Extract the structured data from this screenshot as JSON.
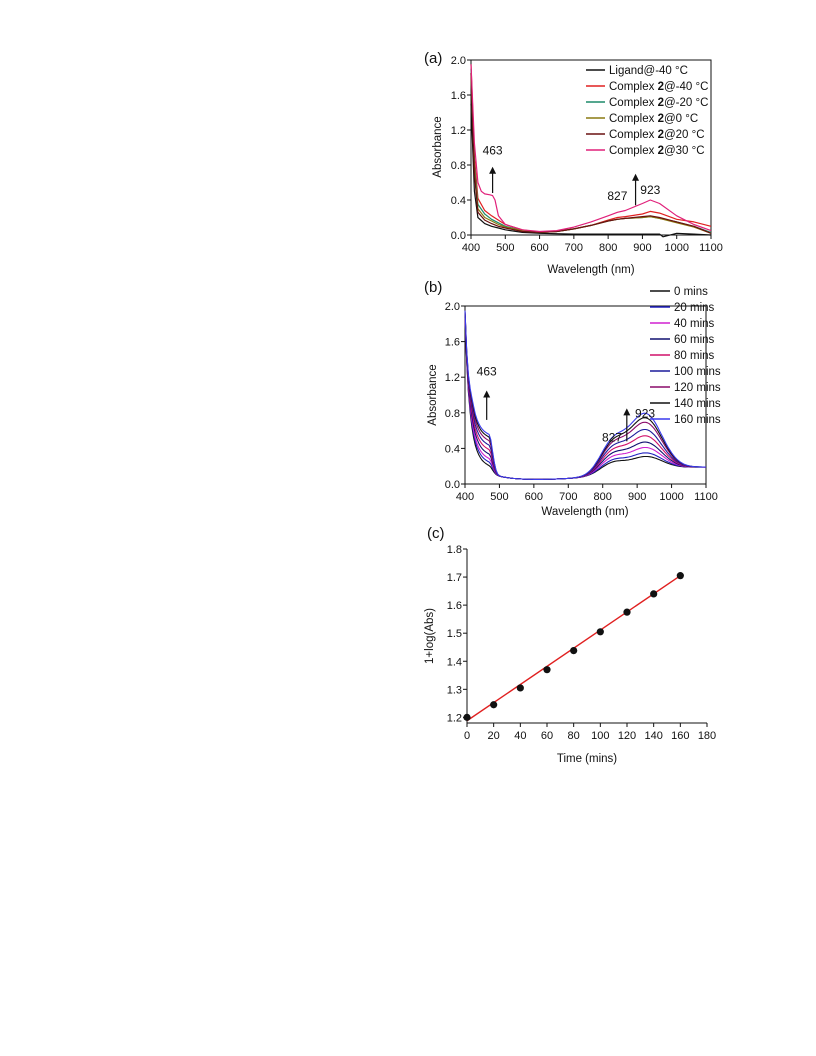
{
  "chart_data": [
    {
      "panel_label": "(a)",
      "type": "line",
      "xlabel": "Wavelength (nm)",
      "ylabel": "Absorbance",
      "xlim": [
        400,
        1100
      ],
      "ylim": [
        0.0,
        2.0
      ],
      "xticks": [
        "400",
        "500",
        "600",
        "700",
        "800",
        "900",
        "1000",
        "1100"
      ],
      "yticks": [
        "0.0",
        "0.4",
        "0.8",
        "1.2",
        "1.6",
        "2.0"
      ],
      "legend_position": "top-right",
      "annotations": [
        {
          "text": "463",
          "x": 463,
          "y": 0.92
        },
        {
          "text": "827",
          "x": 827,
          "y": 0.4
        },
        {
          "text": "923",
          "x": 923,
          "y": 0.47
        }
      ],
      "arrows": [
        {
          "x": 463,
          "y_from": 0.48,
          "y_to": 0.78
        },
        {
          "x": 880,
          "y_from": 0.34,
          "y_to": 0.7
        }
      ],
      "series": [
        {
          "legend_prefix": "Ligand@-40 °C",
          "legend_bold": "",
          "legend_suffix": "",
          "color": "#111111",
          "x": [
            400,
            410,
            420,
            440,
            460,
            480,
            500,
            550,
            600,
            700,
            800,
            900,
            950,
            960,
            1000,
            1050,
            1100
          ],
          "y": [
            1.5,
            0.5,
            0.2,
            0.13,
            0.1,
            0.08,
            0.06,
            0.03,
            0.02,
            0.01,
            0.01,
            0.01,
            0.01,
            -0.02,
            0.02,
            0.01,
            0.0
          ]
        },
        {
          "legend_prefix": "Complex ",
          "legend_bold": "2",
          "legend_suffix": "@-40 °C",
          "color": "#e02020",
          "x": [
            400,
            410,
            420,
            440,
            460,
            480,
            500,
            550,
            600,
            650,
            700,
            750,
            800,
            827,
            850,
            900,
            923,
            950,
            1000,
            1050,
            1100
          ],
          "y": [
            1.95,
            0.9,
            0.42,
            0.28,
            0.22,
            0.17,
            0.12,
            0.06,
            0.03,
            0.04,
            0.07,
            0.11,
            0.17,
            0.2,
            0.21,
            0.24,
            0.27,
            0.25,
            0.18,
            0.15,
            0.1
          ]
        },
        {
          "legend_prefix": "Complex ",
          "legend_bold": "2",
          "legend_suffix": "@-20 °C",
          "color": "#1d8a6a",
          "x": [
            400,
            410,
            420,
            440,
            460,
            480,
            500,
            550,
            600,
            650,
            700,
            750,
            800,
            827,
            850,
            900,
            923,
            950,
            1000,
            1050,
            1100
          ],
          "y": [
            1.9,
            0.8,
            0.35,
            0.24,
            0.18,
            0.14,
            0.1,
            0.05,
            0.03,
            0.04,
            0.07,
            0.11,
            0.16,
            0.18,
            0.19,
            0.2,
            0.21,
            0.19,
            0.15,
            0.1,
            0.03
          ]
        },
        {
          "legend_prefix": "Complex ",
          "legend_bold": "2",
          "legend_suffix": "@0 °C",
          "color": "#8a7a10",
          "x": [
            400,
            410,
            420,
            440,
            460,
            480,
            500,
            550,
            600,
            650,
            700,
            750,
            800,
            827,
            850,
            900,
            923,
            950,
            1000,
            1050,
            1100
          ],
          "y": [
            1.85,
            0.75,
            0.3,
            0.2,
            0.16,
            0.12,
            0.09,
            0.05,
            0.03,
            0.04,
            0.07,
            0.11,
            0.16,
            0.18,
            0.19,
            0.2,
            0.21,
            0.19,
            0.14,
            0.09,
            0.02
          ]
        },
        {
          "legend_prefix": "Complex ",
          "legend_bold": "2",
          "legend_suffix": "@20 °C",
          "color": "#6a1010",
          "x": [
            400,
            410,
            420,
            440,
            460,
            480,
            500,
            550,
            600,
            650,
            700,
            750,
            800,
            827,
            850,
            900,
            923,
            950,
            1000,
            1050,
            1100
          ],
          "y": [
            1.85,
            0.7,
            0.26,
            0.17,
            0.13,
            0.1,
            0.08,
            0.04,
            0.03,
            0.04,
            0.07,
            0.11,
            0.16,
            0.18,
            0.19,
            0.21,
            0.22,
            0.2,
            0.15,
            0.1,
            0.02
          ]
        },
        {
          "legend_prefix": "Complex ",
          "legend_bold": "2",
          "legend_suffix": "@30 °C",
          "color": "#e0207a",
          "x": [
            400,
            410,
            420,
            430,
            440,
            455,
            463,
            470,
            480,
            500,
            550,
            600,
            650,
            700,
            750,
            800,
            827,
            850,
            900,
            923,
            950,
            1000,
            1050,
            1100
          ],
          "y": [
            1.95,
            1.05,
            0.6,
            0.5,
            0.47,
            0.46,
            0.45,
            0.4,
            0.22,
            0.12,
            0.06,
            0.04,
            0.05,
            0.09,
            0.15,
            0.22,
            0.26,
            0.28,
            0.36,
            0.4,
            0.36,
            0.22,
            0.12,
            0.05
          ]
        }
      ]
    },
    {
      "panel_label": "(b)",
      "type": "line",
      "xlabel": "Wavelength (nm)",
      "ylabel": "Absorbance",
      "xlim": [
        400,
        1100
      ],
      "ylim": [
        0.0,
        2.0
      ],
      "xticks": [
        "400",
        "500",
        "600",
        "700",
        "800",
        "900",
        "1000",
        "1100"
      ],
      "yticks": [
        "0.0",
        "0.4",
        "0.8",
        "1.2",
        "1.6",
        "2.0"
      ],
      "legend_position": "top-right",
      "annotations": [
        {
          "text": "463",
          "x": 463,
          "y": 1.22
        },
        {
          "text": "827",
          "x": 827,
          "y": 0.48
        },
        {
          "text": "923",
          "x": 923,
          "y": 0.75
        }
      ],
      "arrows": [
        {
          "x": 463,
          "y_from": 0.72,
          "y_to": 1.05
        },
        {
          "x": 870,
          "y_from": 0.48,
          "y_to": 0.85
        }
      ],
      "series": [
        {
          "name": "0 mins",
          "color": "#111111",
          "p463": 0.32,
          "p827": 0.2,
          "p923": 0.22
        },
        {
          "name": "20 mins",
          "color": "#2020c0",
          "p463": 0.36,
          "p827": 0.22,
          "p923": 0.26
        },
        {
          "name": "40 mins",
          "color": "#d020d0",
          "p463": 0.4,
          "p827": 0.25,
          "p923": 0.32
        },
        {
          "name": "60 mins",
          "color": "#101070",
          "p463": 0.45,
          "p827": 0.28,
          "p923": 0.38
        },
        {
          "name": "80 mins",
          "color": "#d0106a",
          "p463": 0.5,
          "p827": 0.31,
          "p923": 0.45
        },
        {
          "name": "100 mins",
          "color": "#1c1c9c",
          "p463": 0.55,
          "p827": 0.34,
          "p923": 0.52
        },
        {
          "name": "120 mins",
          "color": "#8a0a6a",
          "p463": 0.6,
          "p827": 0.37,
          "p923": 0.6
        },
        {
          "name": "140 mins",
          "color": "#111111",
          "p463": 0.64,
          "p827": 0.39,
          "p923": 0.65
        },
        {
          "name": "160 mins",
          "color": "#3a3aee",
          "p463": 0.67,
          "p827": 0.41,
          "p923": 0.7
        }
      ]
    },
    {
      "panel_label": "(c)",
      "type": "scatter",
      "xlabel": "Time (mins)",
      "ylabel": "1+log(Abs)",
      "xlim": [
        0,
        180
      ],
      "ylim": [
        1.18,
        1.8
      ],
      "xticks": [
        "0",
        "20",
        "40",
        "60",
        "80",
        "100",
        "120",
        "140",
        "160",
        "180"
      ],
      "yticks": [
        "1.2",
        "1.3",
        "1.4",
        "1.5",
        "1.6",
        "1.7",
        "1.8"
      ],
      "x": [
        0,
        20,
        40,
        60,
        80,
        100,
        120,
        140,
        160
      ],
      "y": [
        1.2,
        1.245,
        1.305,
        1.37,
        1.438,
        1.505,
        1.575,
        1.64,
        1.705
      ],
      "fit": {
        "color": "#e02020",
        "x": [
          0,
          160
        ],
        "y": [
          1.188,
          1.705
        ]
      },
      "marker_color": "#111111"
    }
  ]
}
